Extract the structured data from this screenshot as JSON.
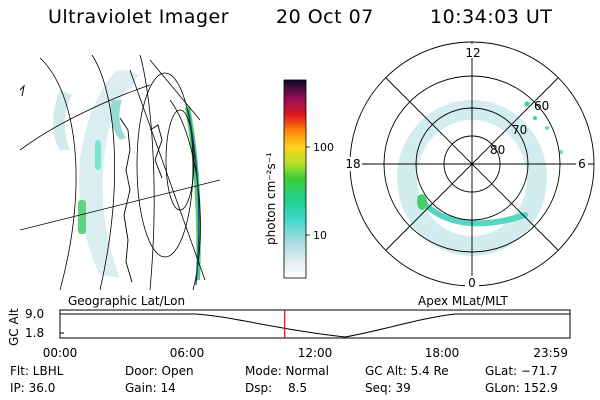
{
  "header": {
    "title": "Ultraviolet Imager",
    "date": "20 Oct 07",
    "time": "10:34:03 UT"
  },
  "left_panel": {
    "label": "Geographic Lat/Lon"
  },
  "right_panel": {
    "label": "Apex MLat/MLT",
    "mlt_labels": [
      "12",
      "18",
      "6",
      "0"
    ],
    "lat_labels": [
      "60",
      "70",
      "80"
    ]
  },
  "colorbar": {
    "label": "photon cm⁻²s⁻¹",
    "ticks": [
      "100",
      "10"
    ]
  },
  "altitude_plot": {
    "ylabel": "GC Alt",
    "y_ticks": [
      "9.0",
      "1.8"
    ],
    "x_ticks": [
      "00:00",
      "06:00",
      "12:00",
      "18:00",
      "23:59"
    ],
    "marker_time": "10:34",
    "marker_color": "#ff0000"
  },
  "info": {
    "flt": "Flt: LBHL",
    "ip": "IP: 36.0",
    "door": "Door: Open",
    "gain": "Gain: 14",
    "mode": "Mode: Normal",
    "dsp_label": "Dsp:",
    "dsp_value": "8.5",
    "gcalt": "GC Alt: 5.4 Re",
    "seq": "Seq: 39",
    "glat": "GLat: −71.7",
    "glon": "GLon: 152.9"
  }
}
